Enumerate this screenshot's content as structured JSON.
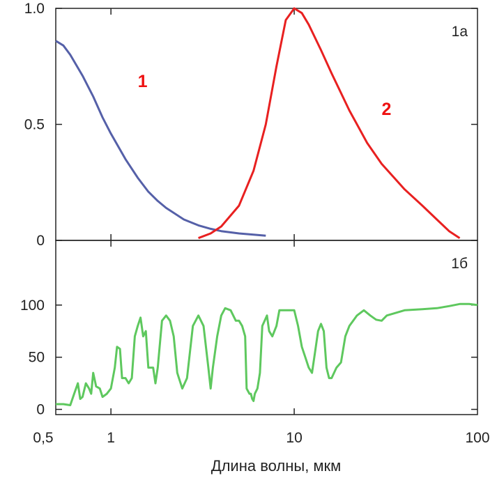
{
  "chart_data": [
    {
      "panel": "1a",
      "type": "line",
      "x_scale": "log",
      "xlim": [
        0.5,
        100
      ],
      "ylim": [
        0,
        1.0
      ],
      "yticks": [
        {
          "value": 0,
          "label": "0"
        },
        {
          "value": 0.5,
          "label": "0.5"
        },
        {
          "value": 1.0,
          "label": "1.0"
        }
      ],
      "panel_label": "1а",
      "series": [
        {
          "label": "1",
          "color": "#5560a8",
          "points": [
            [
              0.5,
              0.86
            ],
            [
              0.55,
              0.84
            ],
            [
              0.6,
              0.8
            ],
            [
              0.7,
              0.71
            ],
            [
              0.8,
              0.62
            ],
            [
              0.9,
              0.53
            ],
            [
              1.0,
              0.46
            ],
            [
              1.2,
              0.35
            ],
            [
              1.4,
              0.27
            ],
            [
              1.6,
              0.21
            ],
            [
              1.8,
              0.17
            ],
            [
              2.0,
              0.14
            ],
            [
              2.5,
              0.09
            ],
            [
              3.0,
              0.065
            ],
            [
              3.5,
              0.05
            ],
            [
              4.0,
              0.04
            ],
            [
              5.0,
              0.03
            ],
            [
              6.0,
              0.025
            ],
            [
              7.0,
              0.02
            ]
          ]
        },
        {
          "label": "2",
          "color": "#e82020",
          "points": [
            [
              3.0,
              0.01
            ],
            [
              3.5,
              0.03
            ],
            [
              4.0,
              0.06
            ],
            [
              5.0,
              0.15
            ],
            [
              6.0,
              0.3
            ],
            [
              7.0,
              0.5
            ],
            [
              8.0,
              0.75
            ],
            [
              9.0,
              0.95
            ],
            [
              10.0,
              1.0
            ],
            [
              11.0,
              0.98
            ],
            [
              12.0,
              0.93
            ],
            [
              14.0,
              0.82
            ],
            [
              16.0,
              0.72
            ],
            [
              20.0,
              0.56
            ],
            [
              25.0,
              0.42
            ],
            [
              30.0,
              0.33
            ],
            [
              40.0,
              0.22
            ],
            [
              50.0,
              0.15
            ],
            [
              60.0,
              0.09
            ],
            [
              70.0,
              0.04
            ],
            [
              80.0,
              0.01
            ]
          ]
        }
      ]
    },
    {
      "panel": "1б",
      "type": "line",
      "x_scale": "log",
      "xlim": [
        0.5,
        100
      ],
      "ylim": [
        -5,
        162
      ],
      "yticks": [
        {
          "value": 0,
          "label": "0"
        },
        {
          "value": 50,
          "label": "50"
        },
        {
          "value": 100,
          "label": "100"
        }
      ],
      "panel_label": "1б",
      "xticks": [
        {
          "value": 0.5,
          "label": "0,5"
        },
        {
          "value": 1,
          "label": "1"
        },
        {
          "value": 10,
          "label": "10"
        },
        {
          "value": 100,
          "label": "100"
        }
      ],
      "xlabel": "Длина волны, мкм",
      "series": [
        {
          "color": "#5ec85e",
          "points": [
            [
              0.5,
              5
            ],
            [
              0.55,
              5
            ],
            [
              0.6,
              4
            ],
            [
              0.63,
              15
            ],
            [
              0.66,
              25
            ],
            [
              0.68,
              10
            ],
            [
              0.7,
              12
            ],
            [
              0.73,
              25
            ],
            [
              0.76,
              20
            ],
            [
              0.78,
              15
            ],
            [
              0.8,
              35
            ],
            [
              0.83,
              22
            ],
            [
              0.87,
              20
            ],
            [
              0.9,
              12
            ],
            [
              0.95,
              15
            ],
            [
              1.0,
              20
            ],
            [
              1.05,
              40
            ],
            [
              1.08,
              60
            ],
            [
              1.12,
              58
            ],
            [
              1.15,
              30
            ],
            [
              1.2,
              30
            ],
            [
              1.25,
              25
            ],
            [
              1.3,
              30
            ],
            [
              1.35,
              70
            ],
            [
              1.4,
              80
            ],
            [
              1.45,
              88
            ],
            [
              1.5,
              70
            ],
            [
              1.55,
              75
            ],
            [
              1.6,
              40
            ],
            [
              1.7,
              40
            ],
            [
              1.75,
              25
            ],
            [
              1.8,
              40
            ],
            [
              1.9,
              85
            ],
            [
              2.0,
              90
            ],
            [
              2.1,
              85
            ],
            [
              2.2,
              70
            ],
            [
              2.3,
              35
            ],
            [
              2.45,
              20
            ],
            [
              2.6,
              30
            ],
            [
              2.8,
              80
            ],
            [
              3.0,
              90
            ],
            [
              3.2,
              80
            ],
            [
              3.4,
              40
            ],
            [
              3.5,
              20
            ],
            [
              3.6,
              40
            ],
            [
              3.8,
              70
            ],
            [
              4.0,
              90
            ],
            [
              4.2,
              97
            ],
            [
              4.5,
              95
            ],
            [
              4.8,
              85
            ],
            [
              5.0,
              85
            ],
            [
              5.2,
              80
            ],
            [
              5.4,
              70
            ],
            [
              5.5,
              20
            ],
            [
              5.7,
              15
            ],
            [
              5.8,
              15
            ],
            [
              5.9,
              10
            ],
            [
              6.0,
              8
            ],
            [
              6.1,
              15
            ],
            [
              6.3,
              20
            ],
            [
              6.5,
              35
            ],
            [
              6.7,
              80
            ],
            [
              6.9,
              85
            ],
            [
              7.1,
              90
            ],
            [
              7.3,
              75
            ],
            [
              7.6,
              70
            ],
            [
              8.0,
              80
            ],
            [
              8.3,
              95
            ],
            [
              9.0,
              95
            ],
            [
              10.0,
              95
            ],
            [
              10.5,
              80
            ],
            [
              11.0,
              60
            ],
            [
              11.5,
              50
            ],
            [
              12.0,
              40
            ],
            [
              12.5,
              35
            ],
            [
              13.0,
              55
            ],
            [
              13.5,
              75
            ],
            [
              14.0,
              82
            ],
            [
              14.5,
              75
            ],
            [
              15.0,
              40
            ],
            [
              15.5,
              30
            ],
            [
              16.0,
              30
            ],
            [
              17.0,
              40
            ],
            [
              18.0,
              45
            ],
            [
              19.0,
              70
            ],
            [
              20.0,
              80
            ],
            [
              22.0,
              90
            ],
            [
              24.0,
              95
            ],
            [
              26.0,
              90
            ],
            [
              28.0,
              86
            ],
            [
              30.0,
              85
            ],
            [
              32.0,
              90
            ],
            [
              35.0,
              92
            ],
            [
              40.0,
              95
            ],
            [
              50.0,
              96
            ],
            [
              60.0,
              97
            ],
            [
              70.0,
              99
            ],
            [
              80.0,
              101
            ],
            [
              90.0,
              101
            ],
            [
              100.0,
              100
            ]
          ]
        }
      ]
    }
  ]
}
